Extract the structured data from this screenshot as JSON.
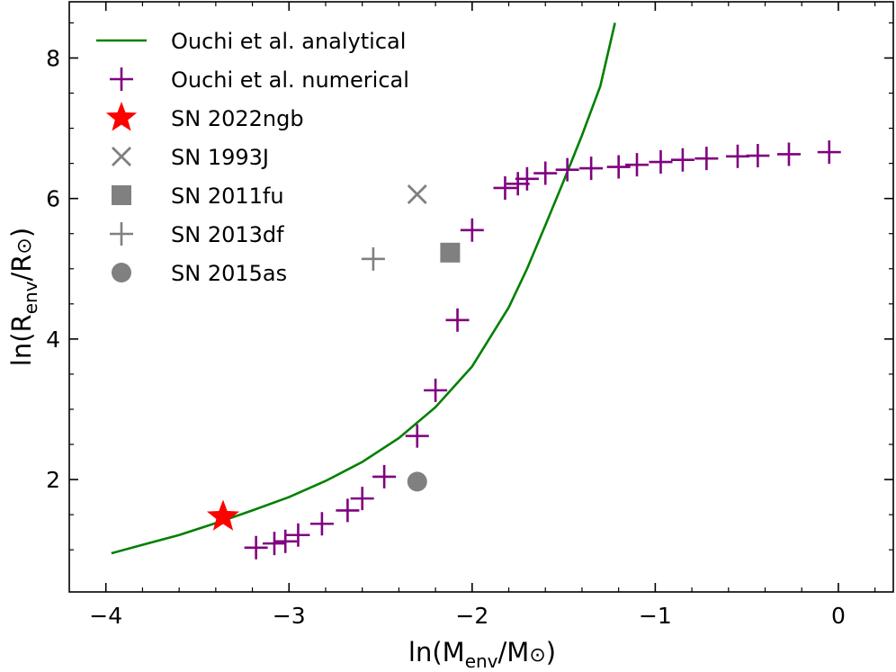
{
  "chart_data": {
    "type": "scatter",
    "title": "",
    "xlabel": {
      "main": "ln(M",
      "sub": "env",
      "mid": "/M",
      "sym": "⊙",
      "end": ")"
    },
    "ylabel": {
      "main": "ln(R",
      "sub": "env",
      "mid": "/R",
      "sym": "⊙",
      "end": ")"
    },
    "xlim": [
      -4.2,
      0.3
    ],
    "ylim": [
      0.4,
      8.8
    ],
    "xticks": [
      -4,
      -3,
      -2,
      -1,
      0
    ],
    "xtick_labels": [
      "−4",
      "−3",
      "−2",
      "−1",
      "0"
    ],
    "yticks": [
      2,
      4,
      6,
      8
    ],
    "ytick_labels": [
      "2",
      "4",
      "6",
      "8"
    ],
    "legend_position": "top-left",
    "colors": {
      "green": "#008000",
      "purple": "#800080",
      "red": "#ff0000",
      "gray": "#808080"
    },
    "series": [
      {
        "name": "Ouchi et al. analytical",
        "marker": "line",
        "color": "#008000",
        "points": [
          [
            -3.97,
            0.95
          ],
          [
            -3.8,
            1.07
          ],
          [
            -3.6,
            1.21
          ],
          [
            -3.4,
            1.38
          ],
          [
            -3.2,
            1.56
          ],
          [
            -3.0,
            1.75
          ],
          [
            -2.8,
            1.98
          ],
          [
            -2.6,
            2.25
          ],
          [
            -2.4,
            2.59
          ],
          [
            -2.2,
            3.03
          ],
          [
            -2.0,
            3.61
          ],
          [
            -1.8,
            4.45
          ],
          [
            -1.7,
            5.0
          ],
          [
            -1.6,
            5.62
          ],
          [
            -1.5,
            6.25
          ],
          [
            -1.4,
            6.9
          ],
          [
            -1.3,
            7.6
          ],
          [
            -1.22,
            8.5
          ]
        ]
      },
      {
        "name": "Ouchi et al. numerical",
        "marker": "plus",
        "color": "#800080",
        "points": [
          [
            -3.18,
            1.03
          ],
          [
            -3.08,
            1.09
          ],
          [
            -3.02,
            1.12
          ],
          [
            -2.95,
            1.21
          ],
          [
            -2.82,
            1.37
          ],
          [
            -2.68,
            1.56
          ],
          [
            -2.6,
            1.73
          ],
          [
            -2.48,
            2.04
          ],
          [
            -2.3,
            2.62
          ],
          [
            -2.2,
            3.27
          ],
          [
            -2.08,
            4.27
          ],
          [
            -2.0,
            5.55
          ],
          [
            -1.82,
            6.15
          ],
          [
            -1.75,
            6.21
          ],
          [
            -1.7,
            6.28
          ],
          [
            -1.6,
            6.36
          ],
          [
            -1.48,
            6.41
          ],
          [
            -1.35,
            6.43
          ],
          [
            -1.2,
            6.45
          ],
          [
            -1.1,
            6.48
          ],
          [
            -0.97,
            6.52
          ],
          [
            -0.85,
            6.55
          ],
          [
            -0.72,
            6.57
          ],
          [
            -0.55,
            6.6
          ],
          [
            -0.44,
            6.61
          ],
          [
            -0.27,
            6.63
          ],
          [
            -0.05,
            6.66
          ]
        ]
      },
      {
        "name": "SN 2022ngb",
        "marker": "star",
        "color": "#ff0000",
        "points": [
          [
            -3.36,
            1.47
          ]
        ]
      },
      {
        "name": "SN 1993J",
        "marker": "x",
        "color": "#808080",
        "points": [
          [
            -2.3,
            6.06
          ]
        ]
      },
      {
        "name": "SN 2011fu",
        "marker": "square",
        "color": "#808080",
        "points": [
          [
            -2.12,
            5.23
          ]
        ]
      },
      {
        "name": "SN 2013df",
        "marker": "plus",
        "color": "#808080",
        "points": [
          [
            -2.54,
            5.14
          ]
        ]
      },
      {
        "name": "SN 2015as",
        "marker": "circle",
        "color": "#808080",
        "points": [
          [
            -2.3,
            1.97
          ]
        ]
      }
    ]
  }
}
